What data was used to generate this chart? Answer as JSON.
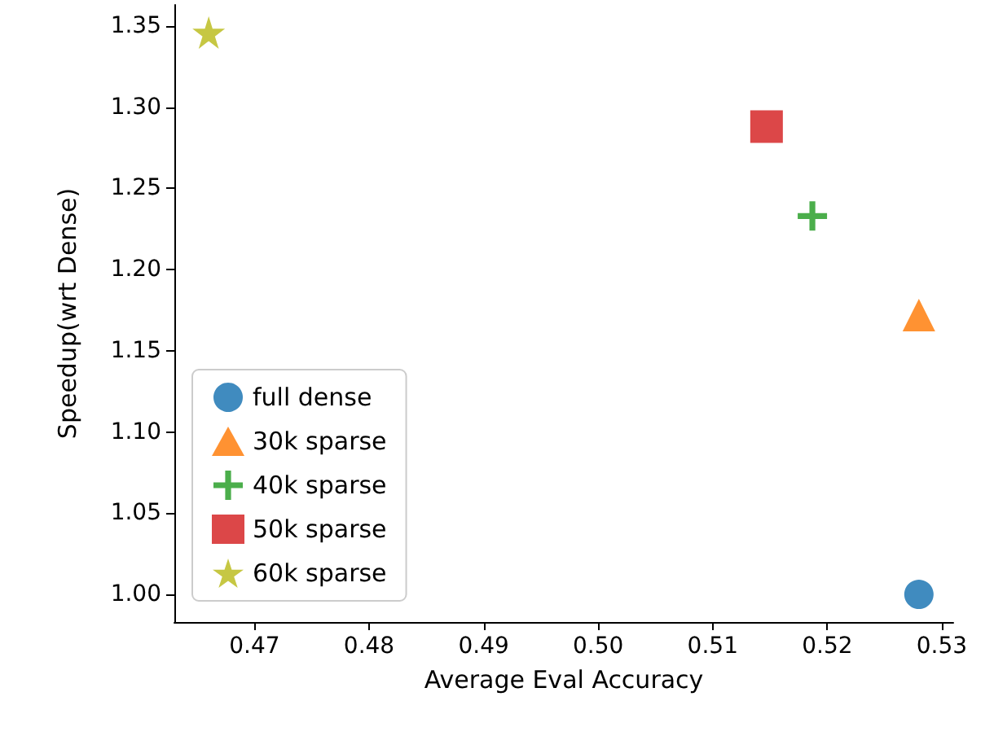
{
  "chart_data": {
    "type": "scatter",
    "xlabel": "Average Eval Accuracy",
    "ylabel": "Speedup(wrt Dense)",
    "series": [
      {
        "name": "full dense",
        "color": "#1f77b4",
        "marker": "circle",
        "x": [
          0.528
        ],
        "values": [
          1.0
        ]
      },
      {
        "name": "30k sparse",
        "color": "#ff7f0e",
        "marker": "triangle",
        "x": [
          0.528
        ],
        "values": [
          1.172
        ]
      },
      {
        "name": "40k sparse",
        "color": "#2ca02c",
        "marker": "cross",
        "x": [
          0.5187
        ],
        "values": [
          1.233
        ]
      },
      {
        "name": "50k sparse",
        "color": "#d62728",
        "marker": "square",
        "x": [
          0.5147
        ],
        "values": [
          1.288
        ]
      },
      {
        "name": "60k sparse",
        "color": "#bcbd22",
        "marker": "star",
        "x": [
          0.466
        ],
        "values": [
          1.346
        ]
      }
    ],
    "xlim": [
      0.463,
      0.531
    ],
    "ylim": [
      0.983,
      1.363
    ],
    "xticks": [
      0.47,
      0.48,
      0.49,
      {
        "value": 0.5,
        "label": "0.50"
      },
      0.51,
      0.52,
      0.53
    ],
    "yticks": [
      {
        "value": 1,
        "label": "1.00"
      },
      1.05,
      {
        "value": 1.1,
        "label": "1.10"
      },
      1.15,
      {
        "value": 1.2,
        "label": "1.20"
      },
      1.25,
      {
        "value": 1.3,
        "label": "1.30"
      },
      1.35
    ],
    "grid": false,
    "legend": "bottom left"
  }
}
